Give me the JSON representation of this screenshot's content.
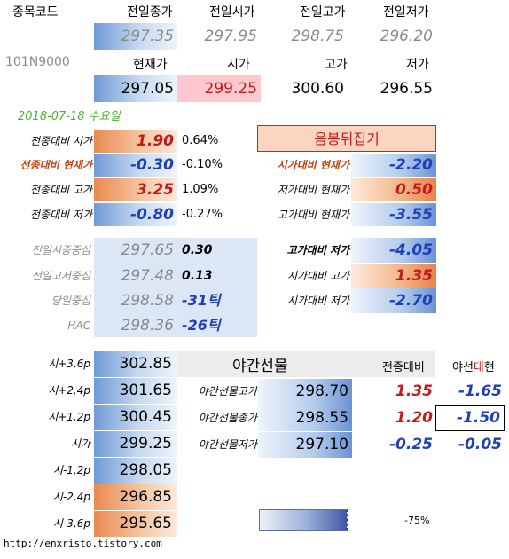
{
  "header": {
    "code_label": "종목코드",
    "code_value": "101N9000",
    "prev_close_label": "전일종가",
    "prev_open_label": "전일시가",
    "prev_high_label": "전일고가",
    "prev_low_label": "전일저가",
    "prev_close": "297.35",
    "prev_open": "297.95",
    "prev_high": "298.75",
    "prev_low": "296.20",
    "current_label": "현재가",
    "open_label": "시가",
    "high_label": "고가",
    "low_label": "저가",
    "current": "297.05",
    "open": "299.25",
    "high": "300.60",
    "low": "296.55"
  },
  "date": "2018-07-18  수요일",
  "left_rows": [
    {
      "label": "전종대비 시가",
      "value": "1.90",
      "pct": "0.64%"
    },
    {
      "label": "전종대비 현재가",
      "value": "-0.30",
      "pct": "-0.10%"
    },
    {
      "label": "전종대비 고가",
      "value": "3.25",
      "pct": "1.09%"
    },
    {
      "label": "전종대비 저가",
      "value": "-0.80",
      "pct": "-0.27%"
    }
  ],
  "candle_label": "음봉뒤집기",
  "right_rows": [
    {
      "label": "시가대비 현재가",
      "value": "-2.20"
    },
    {
      "label": "저가대비 현재가",
      "value": "0.50"
    },
    {
      "label": "고가대비 현재가",
      "value": "-3.55"
    }
  ],
  "centers": [
    {
      "label": "전일시종중심",
      "value": "297.65",
      "extra": "0.30"
    },
    {
      "label": "전일고저중심",
      "value": "297.48",
      "extra": "0.13"
    },
    {
      "label": "당일중심",
      "value": "298.58",
      "extra": "-31틱"
    },
    {
      "label": "HAC",
      "value": "298.36",
      "extra": "-26틱"
    }
  ],
  "right_rows2": [
    {
      "label": "고가대비 저가",
      "value": "-4.05"
    },
    {
      "label": "시가대비 고가",
      "value": "1.35"
    },
    {
      "label": "시가대비 저가",
      "value": "-2.70"
    }
  ],
  "levels": [
    {
      "label": "시+3,6p",
      "value": "302.85"
    },
    {
      "label": "시+2,4p",
      "value": "301.65"
    },
    {
      "label": "시+1,2p",
      "value": "300.45"
    },
    {
      "label": "시가",
      "value": "299.25"
    },
    {
      "label": "시-1,2p",
      "value": "298.05"
    },
    {
      "label": "시-2,4p",
      "value": "296.85"
    },
    {
      "label": "시-3,6p",
      "value": "295.65"
    }
  ],
  "night": {
    "title": "야간선물",
    "vs_close_label": "전종대비",
    "vs_night_label_a": "야선",
    "vs_night_label_b": "대",
    "vs_night_label_c": "현",
    "rows": [
      {
        "label": "야간선물고가",
        "value": "298.70",
        "vs_close": "1.35",
        "vs_night": "-1.65"
      },
      {
        "label": "야간선물종가",
        "value": "298.55",
        "vs_close": "1.20",
        "vs_night": "-1.50"
      },
      {
        "label": "야간선물저가",
        "value": "297.10",
        "vs_close": "-0.25",
        "vs_night": "-0.05"
      }
    ]
  },
  "legend_pct": "-75%",
  "footer_url": "http://enxristo.tistory.com"
}
